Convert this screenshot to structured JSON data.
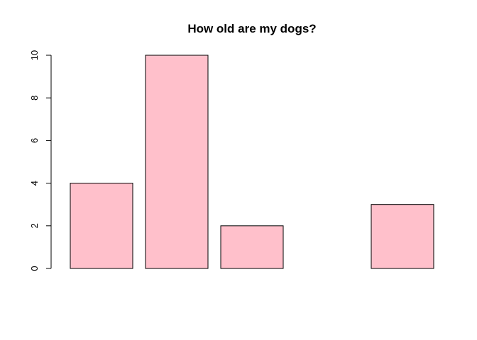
{
  "chart_data": {
    "type": "bar",
    "title": "How old are my dogs?",
    "xlabel": "",
    "ylabel": "",
    "values": [
      4,
      10,
      2,
      0,
      3
    ],
    "ylim": [
      0,
      10
    ],
    "yticks": [
      0,
      2,
      4,
      6,
      8,
      10
    ],
    "bar_color": "#FFC0CB",
    "grid": false,
    "legend": "none"
  }
}
